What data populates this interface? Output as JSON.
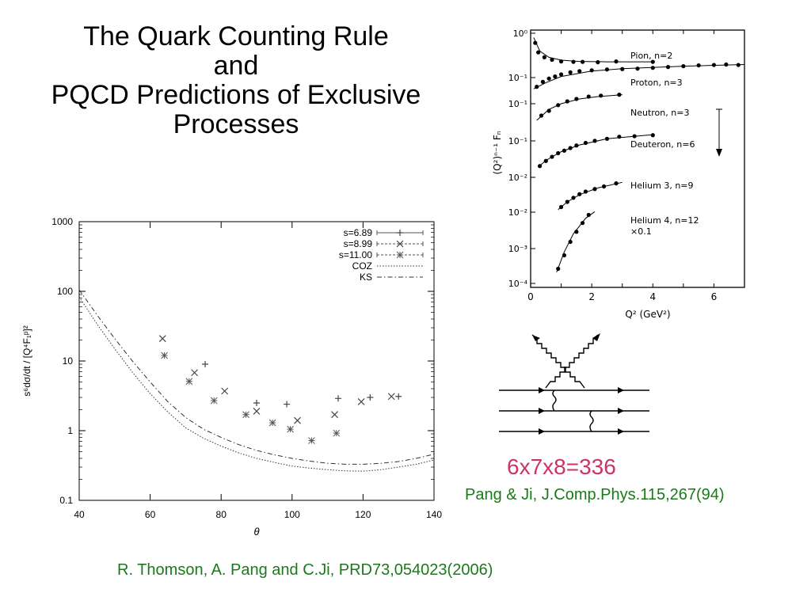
{
  "slide": {
    "title_lines": [
      "The Quark Counting Rule",
      "and",
      "PQCD Predictions of Exclusive",
      "Processes"
    ],
    "product_text": "6x7x8=336",
    "ref_pang_ji": "Pang & Ji, J.Comp.Phys.115,267(94)",
    "ref_thomson": "R. Thomson, A. Pang and C.Ji, PRD73,054023(2006)"
  },
  "colors": {
    "title": "#000000",
    "product": "#cc3366",
    "reference": "#1a7a1a"
  },
  "chart_data": [
    {
      "type": "scatter",
      "title": "",
      "xlabel": "θ",
      "ylabel": "s⁶dσ/dt / [Q⁴F₁ᵖ]²",
      "xlim": [
        40,
        140
      ],
      "ylim": [
        0.1,
        1000
      ],
      "yscale": "log",
      "x_ticks": [
        40,
        60,
        80,
        100,
        120,
        140
      ],
      "y_ticks": [
        {
          "value": 0.1,
          "label": "0.1"
        },
        {
          "value": 1,
          "label": "1"
        },
        {
          "value": 10,
          "label": "10"
        },
        {
          "value": 100,
          "label": "100"
        },
        {
          "value": 1000,
          "label": "1000"
        }
      ],
      "legend_position": "top-right",
      "series": [
        {
          "name": "s=6.89",
          "marker": "plus",
          "points": [
            [
              75.5,
              9.0
            ],
            [
              90,
              2.5
            ],
            [
              98.5,
              2.4
            ],
            [
              113,
              2.9
            ],
            [
              122,
              3.0
            ],
            [
              130,
              3.1
            ]
          ]
        },
        {
          "name": "s=8.99",
          "marker": "x",
          "points": [
            [
              63.5,
              21
            ],
            [
              72.5,
              6.8
            ],
            [
              81,
              3.7
            ],
            [
              90,
              1.9
            ],
            [
              101.5,
              1.4
            ],
            [
              112,
              1.7
            ],
            [
              119.5,
              2.6
            ],
            [
              128,
              3.1
            ]
          ]
        },
        {
          "name": "s=11.00",
          "marker": "star",
          "points": [
            [
              64,
              12
            ],
            [
              71,
              5.1
            ],
            [
              78,
              2.7
            ],
            [
              87,
              1.7
            ],
            [
              94.5,
              1.3
            ],
            [
              99.5,
              1.05
            ],
            [
              105.5,
              0.72
            ],
            [
              112.5,
              0.92
            ]
          ]
        },
        {
          "name": "COZ",
          "style": "dotted",
          "points": [
            [
              40,
              83
            ],
            [
              45,
              34
            ],
            [
              50,
              15
            ],
            [
              55,
              6.9
            ],
            [
              60,
              3.4
            ],
            [
              65,
              1.85
            ],
            [
              70,
              1.1
            ],
            [
              75,
              0.78
            ],
            [
              80,
              0.6
            ],
            [
              85,
              0.48
            ],
            [
              90,
              0.4
            ],
            [
              95,
              0.35
            ],
            [
              100,
              0.31
            ],
            [
              105,
              0.29
            ],
            [
              110,
              0.275
            ],
            [
              115,
              0.265
            ],
            [
              120,
              0.262
            ],
            [
              125,
              0.275
            ],
            [
              130,
              0.3
            ],
            [
              135,
              0.33
            ],
            [
              140,
              0.38
            ]
          ]
        },
        {
          "name": "KS",
          "style": "dashdot",
          "points": [
            [
              40,
              105
            ],
            [
              45,
              46
            ],
            [
              50,
              21
            ],
            [
              55,
              10
            ],
            [
              60,
              5.0
            ],
            [
              65,
              2.6
            ],
            [
              70,
              1.55
            ],
            [
              75,
              1.05
            ],
            [
              80,
              0.8
            ],
            [
              85,
              0.63
            ],
            [
              90,
              0.52
            ],
            [
              95,
              0.45
            ],
            [
              100,
              0.4
            ],
            [
              105,
              0.365
            ],
            [
              110,
              0.34
            ],
            [
              115,
              0.33
            ],
            [
              120,
              0.33
            ],
            [
              125,
              0.34
            ],
            [
              130,
              0.36
            ],
            [
              135,
              0.4
            ],
            [
              140,
              0.46
            ]
          ]
        }
      ]
    },
    {
      "type": "scatter",
      "title": "",
      "xlabel": "Q²   (GeV²)",
      "ylabel": "(Q²)ⁿ⁻¹ Fₙ",
      "xlim": [
        0,
        7
      ],
      "x_ticks": [
        0,
        2,
        4,
        6
      ],
      "y_tick_labels": [
        "10⁰",
        "10⁻¹",
        "10⁻¹",
        "10⁻¹",
        "10⁻²",
        "10⁻²",
        "10⁻³",
        "10⁻⁴"
      ],
      "series": [
        {
          "name": "Pion, n=2",
          "points": [
            [
              0.15,
              0.65
            ],
            [
              0.25,
              0.42
            ],
            [
              0.45,
              0.3
            ],
            [
              0.7,
              0.24
            ],
            [
              1.0,
              0.2
            ],
            [
              1.4,
              0.19
            ],
            [
              1.7,
              0.19
            ],
            [
              2.2,
              0.18
            ],
            [
              2.8,
              0.2
            ],
            [
              4.0,
              0.19
            ]
          ],
          "curve": [
            [
              0.1,
              0.78
            ],
            [
              0.3,
              0.45
            ],
            [
              0.6,
              0.3
            ],
            [
              1.0,
              0.23
            ],
            [
              1.6,
              0.2
            ],
            [
              2.5,
              0.19
            ],
            [
              4.0,
              0.19
            ]
          ]
        },
        {
          "name": "Proton, n=3",
          "points": [
            [
              0.2,
              0.2
            ],
            [
              0.4,
              0.32
            ],
            [
              0.6,
              0.4
            ],
            [
              0.8,
              0.45
            ],
            [
              1.0,
              0.5
            ],
            [
              1.3,
              0.55
            ],
            [
              1.6,
              0.58
            ],
            [
              2.0,
              0.6
            ],
            [
              2.5,
              0.62
            ],
            [
              3.0,
              0.63
            ],
            [
              3.5,
              0.64
            ],
            [
              4.0,
              0.66
            ],
            [
              4.5,
              0.68
            ],
            [
              5.0,
              0.7
            ],
            [
              5.5,
              0.72
            ],
            [
              6.0,
              0.73
            ],
            [
              6.4,
              0.74
            ],
            [
              6.8,
              0.73
            ]
          ],
          "curve": [
            [
              0.1,
              0.15
            ],
            [
              0.5,
              0.3
            ],
            [
              1.0,
              0.45
            ],
            [
              2.0,
              0.58
            ],
            [
              3.0,
              0.64
            ],
            [
              5.0,
              0.7
            ],
            [
              7.0,
              0.74
            ]
          ]
        },
        {
          "name": "Neutron, n=3",
          "points": [
            [
              0.35,
              0.2
            ],
            [
              0.6,
              0.3
            ],
            [
              0.9,
              0.42
            ],
            [
              1.2,
              0.5
            ],
            [
              1.5,
              0.55
            ],
            [
              1.9,
              0.6
            ],
            [
              2.3,
              0.62
            ],
            [
              2.9,
              0.64
            ]
          ],
          "curve": [
            [
              0.2,
              0.1
            ],
            [
              0.6,
              0.33
            ],
            [
              1.0,
              0.45
            ],
            [
              1.6,
              0.55
            ],
            [
              2.2,
              0.6
            ],
            [
              3.0,
              0.64
            ]
          ]
        },
        {
          "name": "Deuteron, n=6",
          "points": [
            [
              0.3,
              0.05
            ],
            [
              0.5,
              0.15
            ],
            [
              0.7,
              0.23
            ],
            [
              0.9,
              0.3
            ],
            [
              1.1,
              0.35
            ],
            [
              1.3,
              0.4
            ],
            [
              1.5,
              0.45
            ],
            [
              1.8,
              0.5
            ],
            [
              2.1,
              0.54
            ],
            [
              2.5,
              0.58
            ],
            [
              2.9,
              0.62
            ],
            [
              3.4,
              0.63
            ],
            [
              4.0,
              0.65
            ]
          ],
          "curve": [
            [
              0.25,
              0.03
            ],
            [
              0.5,
              0.16
            ],
            [
              1.0,
              0.33
            ],
            [
              1.6,
              0.46
            ],
            [
              2.5,
              0.58
            ],
            [
              4.0,
              0.66
            ]
          ]
        },
        {
          "name": "Helium 3, n=9",
          "points": [
            [
              1.0,
              0.1
            ],
            [
              1.2,
              0.2
            ],
            [
              1.4,
              0.28
            ],
            [
              1.6,
              0.35
            ],
            [
              1.8,
              0.4
            ],
            [
              2.1,
              0.45
            ],
            [
              2.4,
              0.5
            ],
            [
              2.8,
              0.56
            ]
          ],
          "curve": [
            [
              0.9,
              0.05
            ],
            [
              1.2,
              0.2
            ],
            [
              1.6,
              0.34
            ],
            [
              2.2,
              0.47
            ],
            [
              3.0,
              0.58
            ]
          ]
        },
        {
          "name": "Helium 4, n=12",
          "note": "×0.1",
          "points": [
            [
              0.9,
              0.1
            ],
            [
              1.1,
              0.3
            ],
            [
              1.3,
              0.5
            ],
            [
              1.5,
              0.65
            ],
            [
              1.7,
              0.78
            ],
            [
              1.9,
              0.9
            ]
          ],
          "curve": [
            [
              0.85,
              0.05
            ],
            [
              1.1,
              0.35
            ],
            [
              1.4,
              0.62
            ],
            [
              1.8,
              0.85
            ],
            [
              2.1,
              0.95
            ]
          ]
        }
      ]
    }
  ]
}
